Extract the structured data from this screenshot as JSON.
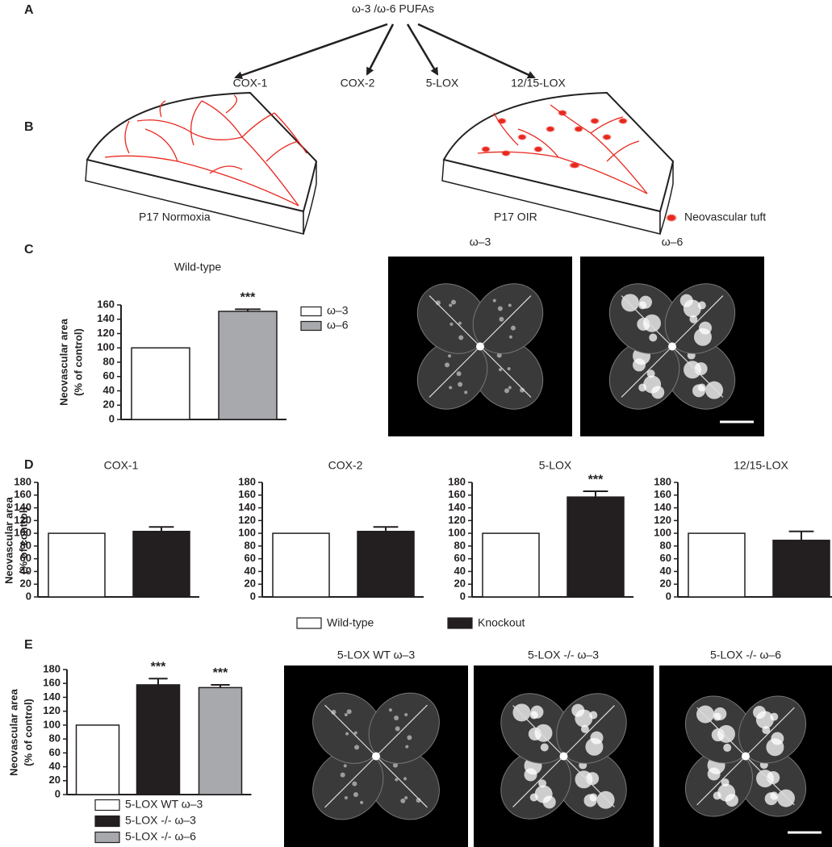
{
  "panels": {
    "A": {
      "label": "A",
      "source": "ω-3 /ω-6 PUFAs",
      "targets": [
        "COX-1",
        "COX-2",
        "5-LOX",
        "12/15-LOX"
      ]
    },
    "B": {
      "label": "B",
      "captions": [
        "P17 Normoxia",
        "P17 OIR"
      ],
      "tuft_legend": "Neovascular tuft"
    },
    "C": {
      "label": "C",
      "image_titles": [
        "ω–3",
        "ω–6"
      ]
    },
    "D": {
      "label": "D",
      "legend": [
        "Wild-type",
        "Knockout"
      ]
    },
    "E": {
      "label": "E",
      "image_titles": [
        "5-LOX WT ω–3",
        "5-LOX -/- ω–3",
        "5-LOX -/- ω–6"
      ]
    }
  },
  "chart_data": [
    {
      "type": "bar",
      "title": "Wild-type",
      "y_label": [
        "Neovascular area",
        "(% of control)"
      ],
      "categories": [
        null,
        null
      ],
      "values": [
        100,
        151
      ],
      "errors": [
        null,
        3
      ],
      "annotations": [
        null,
        "***"
      ],
      "colors": [
        "#ffffff",
        "#a7a9ac"
      ],
      "legend": [
        "ω–3",
        "ω–6"
      ],
      "ylim": [
        0,
        160
      ],
      "yticks": [
        0,
        20,
        40,
        60,
        80,
        100,
        120,
        140,
        160
      ]
    },
    {
      "type": "bar",
      "title": "COX-1",
      "y_label": [
        "Neovascular area",
        "(% of control)"
      ],
      "categories": [
        null,
        null
      ],
      "values": [
        100,
        103
      ],
      "errors": [
        null,
        7
      ],
      "annotations": [
        null,
        null
      ],
      "colors": [
        "#ffffff",
        "#231f20"
      ],
      "ylim": [
        0,
        180
      ],
      "yticks": [
        0,
        20,
        40,
        60,
        80,
        100,
        120,
        140,
        160,
        180
      ]
    },
    {
      "type": "bar",
      "title": "COX-2",
      "categories": [
        null,
        null
      ],
      "values": [
        100,
        103
      ],
      "errors": [
        null,
        7
      ],
      "annotations": [
        null,
        null
      ],
      "colors": [
        "#ffffff",
        "#231f20"
      ],
      "ylim": [
        0,
        180
      ],
      "yticks": [
        0,
        20,
        40,
        60,
        80,
        100,
        120,
        140,
        160,
        180
      ]
    },
    {
      "type": "bar",
      "title": "5-LOX",
      "categories": [
        null,
        null
      ],
      "values": [
        100,
        157
      ],
      "errors": [
        null,
        9
      ],
      "annotations": [
        null,
        "***"
      ],
      "colors": [
        "#ffffff",
        "#231f20"
      ],
      "ylim": [
        0,
        180
      ],
      "yticks": [
        0,
        20,
        40,
        60,
        80,
        100,
        120,
        140,
        160,
        180
      ]
    },
    {
      "type": "bar",
      "title": "12/15-LOX",
      "categories": [
        null,
        null
      ],
      "values": [
        100,
        89
      ],
      "errors": [
        null,
        14
      ],
      "annotations": [
        null,
        null
      ],
      "colors": [
        "#ffffff",
        "#231f20"
      ],
      "ylim": [
        0,
        180
      ],
      "yticks": [
        0,
        20,
        40,
        60,
        80,
        100,
        120,
        140,
        160,
        180
      ]
    },
    {
      "type": "bar",
      "y_label": [
        "Neovascular area",
        "(% of control)"
      ],
      "categories": [
        null,
        null,
        null
      ],
      "values": [
        100,
        158,
        154
      ],
      "errors": [
        null,
        9,
        4
      ],
      "annotations": [
        null,
        "***",
        "***"
      ],
      "colors": [
        "#ffffff",
        "#231f20",
        "#a7a9ac"
      ],
      "legend": [
        "5-LOX WT ω–3",
        "5-LOX -/- ω–3",
        "5-LOX -/- ω–6"
      ],
      "ylim": [
        0,
        180
      ],
      "yticks": [
        0,
        20,
        40,
        60,
        80,
        100,
        120,
        140,
        160,
        180
      ]
    }
  ]
}
